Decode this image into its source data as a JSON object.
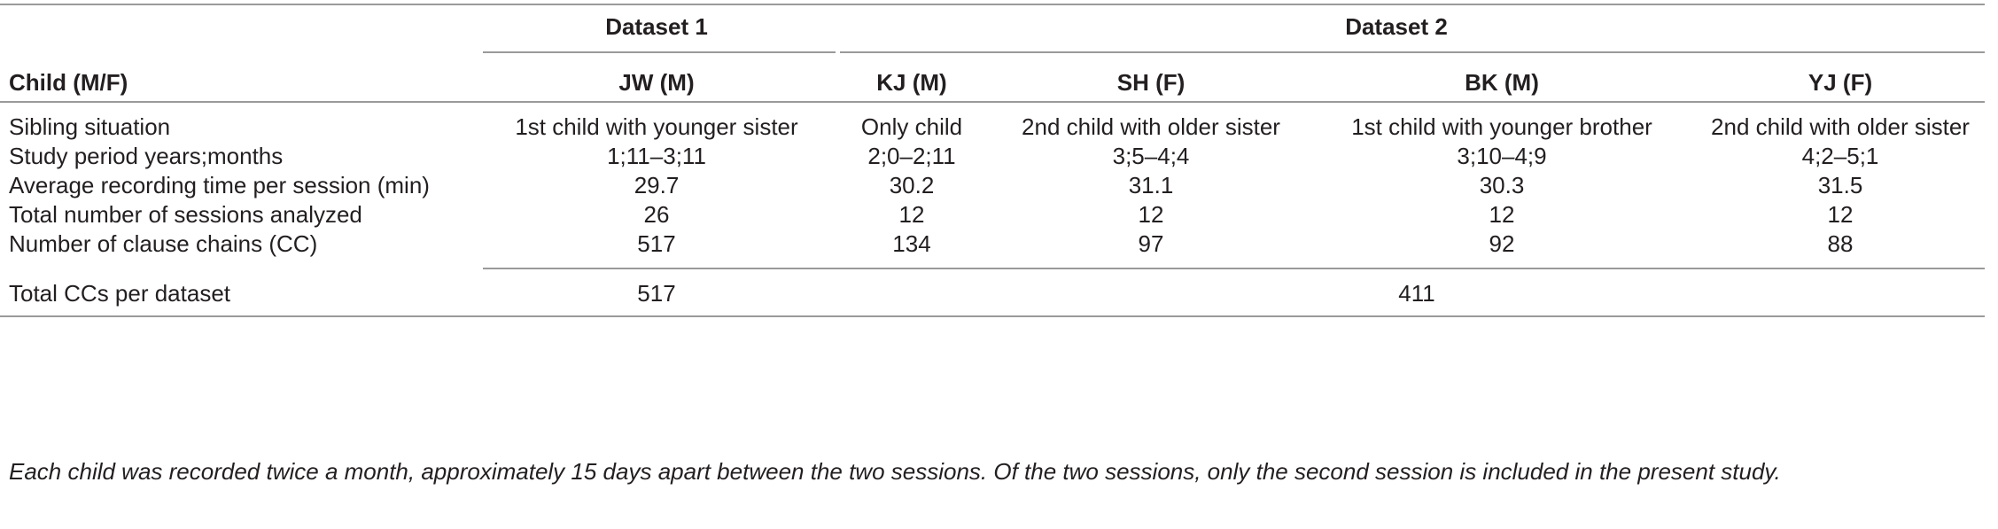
{
  "table": {
    "dataset_headers": {
      "dataset1": "Dataset 1",
      "dataset2": "Dataset 2"
    },
    "column_header_label": "Child (M/F)",
    "children": [
      "JW (M)",
      "KJ (M)",
      "SH (F)",
      "BK (M)",
      "YJ (F)"
    ],
    "rows": [
      {
        "label": "Sibling situation",
        "values": [
          "1st child with younger sister",
          "Only child",
          "2nd child with older sister",
          "1st child with younger brother",
          "2nd child with older sister"
        ]
      },
      {
        "label": "Study period years;months",
        "values": [
          "1;11–3;11",
          "2;0–2;11",
          "3;5–4;4",
          "3;10–4;9",
          "4;2–5;1"
        ]
      },
      {
        "label": "Average recording time per session (min)",
        "values": [
          "29.7",
          "30.2",
          "31.1",
          "30.3",
          "31.5"
        ]
      },
      {
        "label": "Total number of sessions analyzed",
        "values": [
          "26",
          "12",
          "12",
          "12",
          "12"
        ]
      },
      {
        "label": "Number of clause chains (CC)",
        "values": [
          "517",
          "134",
          "97",
          "92",
          "88"
        ]
      }
    ],
    "totals": {
      "label": "Total CCs per dataset",
      "dataset1": "517",
      "dataset2": "411"
    },
    "footnote": "Each child was recorded twice a month, approximately 15 days apart between the two sessions. Of the two sessions, only the second session is included in the present study."
  }
}
